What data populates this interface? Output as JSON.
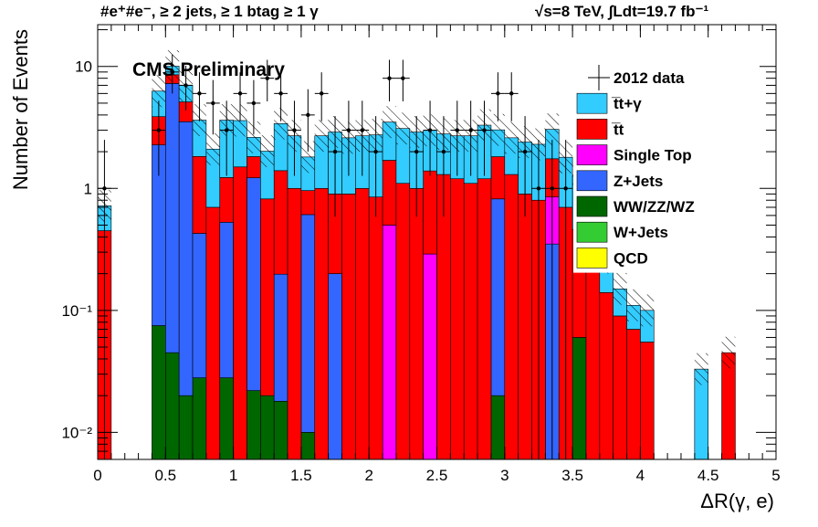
{
  "chart_data": {
    "type": "bar",
    "stacked": true,
    "title_left": "#e⁺#e⁻, ≥ 2 jets, ≥ 1 btag ≥ 1 γ",
    "title_right": "√s=8 TeV,  ∫Ldt=19.7 fb⁻¹",
    "label": "CMS Preliminary",
    "xlabel": "ΔR(γ, e)",
    "ylabel": "Number of Events",
    "xlim": [
      0,
      5
    ],
    "ylim": [
      0.006,
      22
    ],
    "yscale": "log",
    "bin_width": 0.1,
    "x_ticks": [
      "0",
      "0.5",
      "1",
      "1.5",
      "2",
      "2.5",
      "3",
      "3.5",
      "4",
      "4.5",
      "5"
    ],
    "y_ticks": [
      {
        "value": 0.01,
        "label": "10⁻²"
      },
      {
        "value": 0.1,
        "label": "10⁻¹"
      },
      {
        "value": 1,
        "label": "1"
      },
      {
        "value": 10,
        "label": "10"
      }
    ],
    "legend_position": "top-right",
    "series": [
      {
        "name": "QCD",
        "color": "#ffff00",
        "values": []
      },
      {
        "name": "W+Jets",
        "color": "#33cc33",
        "values": []
      },
      {
        "name": "WW/ZZ/WZ",
        "color": "#006600",
        "values": [
          [
            0.45,
            0.075
          ],
          [
            0.55,
            0.045
          ],
          [
            0.65,
            0.02
          ],
          [
            0.75,
            0.028
          ],
          [
            0.95,
            0.028
          ],
          [
            1.15,
            0.022
          ],
          [
            1.25,
            0.02
          ],
          [
            1.35,
            0.018
          ],
          [
            1.55,
            0.01
          ],
          [
            2.95,
            0.02
          ],
          [
            3.55,
            0.06
          ]
        ]
      },
      {
        "name": "Z+Jets",
        "color": "#3366ff",
        "values": [
          [
            0.45,
            2.2
          ],
          [
            0.55,
            7.2
          ],
          [
            0.65,
            3.5
          ],
          [
            0.75,
            0.4
          ],
          [
            0.95,
            0.5
          ],
          [
            1.15,
            1.2
          ],
          [
            1.35,
            0.18
          ],
          [
            1.55,
            0.6
          ],
          [
            1.75,
            0.2
          ],
          [
            2.95,
            0.8
          ],
          [
            3.35,
            0.35
          ]
        ]
      },
      {
        "name": "Single Top",
        "color": "#ff00ff",
        "values": [
          [
            2.15,
            0.5
          ],
          [
            2.45,
            0.29
          ],
          [
            3.35,
            0.5
          ]
        ]
      },
      {
        "name": "t̅t",
        "color": "#ff0000",
        "values": [
          [
            0.05,
            0.45
          ],
          [
            0.45,
            1.6
          ],
          [
            0.55,
            1.3
          ],
          [
            0.65,
            1.6
          ],
          [
            0.75,
            1.4
          ],
          [
            0.85,
            0.7
          ],
          [
            0.95,
            0.7
          ],
          [
            1.05,
            1.5
          ],
          [
            1.15,
            0.6
          ],
          [
            1.25,
            0.8
          ],
          [
            1.35,
            1.2
          ],
          [
            1.45,
            1.0
          ],
          [
            1.55,
            0.35
          ],
          [
            1.65,
            1.0
          ],
          [
            1.75,
            0.7
          ],
          [
            1.85,
            0.9
          ],
          [
            1.95,
            1.0
          ],
          [
            2.05,
            0.85
          ],
          [
            2.15,
            1.2
          ],
          [
            2.25,
            1.1
          ],
          [
            2.35,
            1.0
          ],
          [
            2.45,
            1.1
          ],
          [
            2.55,
            1.3
          ],
          [
            2.65,
            1.2
          ],
          [
            2.75,
            1.1
          ],
          [
            2.85,
            1.2
          ],
          [
            2.95,
            1.0
          ],
          [
            3.05,
            1.3
          ],
          [
            3.15,
            0.9
          ],
          [
            3.25,
            0.8
          ],
          [
            3.35,
            0.9
          ],
          [
            3.45,
            0.7
          ],
          [
            3.55,
            0.4
          ],
          [
            3.65,
            0.25
          ],
          [
            3.75,
            0.14
          ],
          [
            3.85,
            0.09
          ],
          [
            3.95,
            0.07
          ],
          [
            4.05,
            0.055
          ],
          [
            4.65,
            0.045
          ]
        ]
      },
      {
        "name": "t̅t+γ",
        "color": "#33ccff",
        "values": [
          [
            0.05,
            0.27
          ],
          [
            0.45,
            2.4
          ],
          [
            0.55,
            1.5
          ],
          [
            0.65,
            1.9
          ],
          [
            0.75,
            1.8
          ],
          [
            0.85,
            1.4
          ],
          [
            0.95,
            2.4
          ],
          [
            1.05,
            2.1
          ],
          [
            1.15,
            0.8
          ],
          [
            1.25,
            1.2
          ],
          [
            1.35,
            2.0
          ],
          [
            1.45,
            1.7
          ],
          [
            1.55,
            0.85
          ],
          [
            1.65,
            1.7
          ],
          [
            1.75,
            2.0
          ],
          [
            1.85,
            1.7
          ],
          [
            1.95,
            1.7
          ],
          [
            2.05,
            1.9
          ],
          [
            2.15,
            1.8
          ],
          [
            2.25,
            2.0
          ],
          [
            2.35,
            1.9
          ],
          [
            2.45,
            1.6
          ],
          [
            2.55,
            1.5
          ],
          [
            2.65,
            1.5
          ],
          [
            2.75,
            1.6
          ],
          [
            2.85,
            2.1
          ],
          [
            2.95,
            1.2
          ],
          [
            3.05,
            1.3
          ],
          [
            3.15,
            1.5
          ],
          [
            3.25,
            1.5
          ],
          [
            3.35,
            1.3
          ],
          [
            3.45,
            1.1
          ],
          [
            3.55,
            0.8
          ],
          [
            3.65,
            0.25
          ],
          [
            3.75,
            0.13
          ],
          [
            3.85,
            0.06
          ],
          [
            3.95,
            0.04
          ],
          [
            4.05,
            0.045
          ],
          [
            4.45,
            0.033
          ]
        ]
      },
      {
        "name": "2012 data",
        "color": "#000000",
        "marker": "cross",
        "values": [
          [
            0.05,
            1.0
          ],
          [
            0.45,
            3.0
          ],
          [
            0.55,
            9.0
          ],
          [
            0.65,
            7.0
          ],
          [
            0.75,
            6.0
          ],
          [
            0.85,
            5.0
          ],
          [
            0.95,
            3.0
          ],
          [
            1.05,
            6.0
          ],
          [
            1.15,
            5.0
          ],
          [
            1.25,
            8.0
          ],
          [
            1.35,
            6.0
          ],
          [
            1.45,
            3.0
          ],
          [
            1.55,
            4.0
          ],
          [
            1.65,
            6.0
          ],
          [
            1.75,
            2.0
          ],
          [
            1.85,
            3.0
          ],
          [
            1.95,
            3.0
          ],
          [
            2.05,
            2.0
          ],
          [
            2.15,
            8.0
          ],
          [
            2.25,
            8.0
          ],
          [
            2.35,
            2.0
          ],
          [
            2.45,
            3.0
          ],
          [
            2.55,
            2.0
          ],
          [
            2.65,
            3.0
          ],
          [
            2.75,
            3.0
          ],
          [
            2.85,
            3.0
          ],
          [
            2.95,
            6.0
          ],
          [
            3.05,
            6.0
          ],
          [
            3.15,
            2.0
          ],
          [
            3.25,
            1.0
          ],
          [
            3.35,
            1.0
          ],
          [
            3.45,
            1.0
          ]
        ]
      }
    ],
    "total_uncertainty": "hatched",
    "legend": [
      {
        "label": "2012 data",
        "kind": "marker",
        "color": "#000000"
      },
      {
        "label": "t̅t+γ",
        "kind": "box",
        "color": "#33ccff"
      },
      {
        "label": "t̅t",
        "kind": "box",
        "color": "#ff0000"
      },
      {
        "label": "Single Top",
        "kind": "box",
        "color": "#ff00ff"
      },
      {
        "label": "Z+Jets",
        "kind": "box",
        "color": "#3366ff"
      },
      {
        "label": "WW/ZZ/WZ",
        "kind": "box",
        "color": "#006600"
      },
      {
        "label": "W+Jets",
        "kind": "box",
        "color": "#33cc33"
      },
      {
        "label": "QCD",
        "kind": "box",
        "color": "#ffff00"
      }
    ]
  }
}
